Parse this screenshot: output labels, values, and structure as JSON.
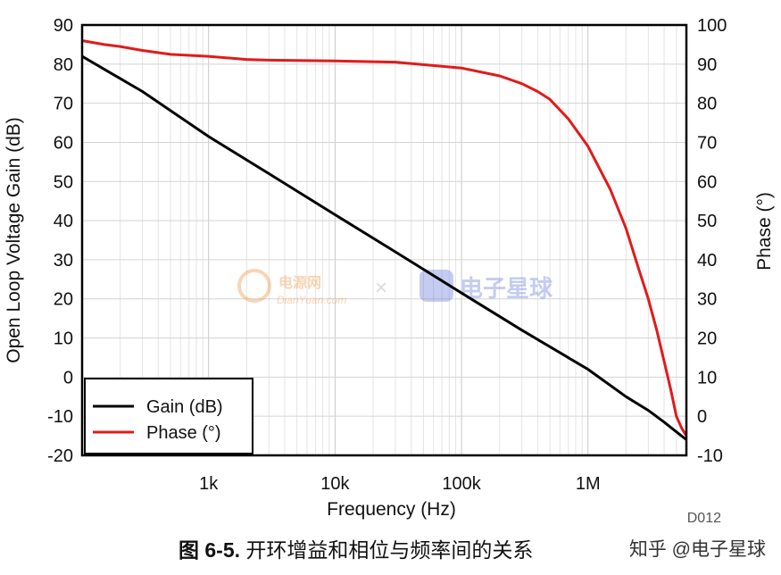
{
  "chart_data": {
    "type": "line",
    "xlabel": "Frequency (Hz)",
    "ylabel_left": "Open Loop Voltage Gain (dB)",
    "ylabel_right": "Phase (°)",
    "x_scale": "log",
    "xlim": [
      100,
      6000000
    ],
    "ylim_left": [
      -20,
      90
    ],
    "ylim_right": [
      -10,
      100
    ],
    "grid": true,
    "legend_position": "bottom-left",
    "x_ticks": [
      {
        "value": 1000,
        "label": "1k"
      },
      {
        "value": 10000,
        "label": "10k"
      },
      {
        "value": 100000,
        "label": "100k"
      },
      {
        "value": 1000000,
        "label": "1M"
      }
    ],
    "y_ticks_left": [
      "90",
      "80",
      "70",
      "60",
      "50",
      "40",
      "30",
      "20",
      "10",
      "0",
      "-10",
      "-20"
    ],
    "y_ticks_right": [
      "100",
      "90",
      "80",
      "70",
      "60",
      "50",
      "40",
      "30",
      "20",
      "10",
      "0",
      "-10"
    ],
    "series": [
      {
        "name": "Gain (dB)",
        "axis": "left",
        "color": "#000000",
        "x": [
          100,
          300,
          1000,
          3000,
          10000,
          30000,
          100000,
          300000,
          1000000,
          2000000,
          3000000,
          4000000,
          5000000,
          6000000
        ],
        "y": [
          82,
          73,
          61.5,
          52,
          41.5,
          32,
          21.5,
          12,
          2,
          -5,
          -8.5,
          -11.5,
          -14,
          -16
        ]
      },
      {
        "name": "Phase (°)",
        "axis": "right",
        "color": "#e01b1b",
        "x": [
          100,
          150,
          200,
          300,
          500,
          1000,
          2000,
          3000,
          10000,
          30000,
          100000,
          200000,
          300000,
          400000,
          500000,
          700000,
          1000000,
          1500000,
          2000000,
          2500000,
          3000000,
          3500000,
          4000000,
          4500000,
          5000000,
          5500000,
          6000000
        ],
        "y": [
          96,
          95,
          94.5,
          93.5,
          92.5,
          92,
          91.2,
          91,
          90.8,
          90.5,
          89,
          87,
          85,
          83,
          81,
          76,
          69,
          58,
          48,
          38,
          30,
          22,
          14,
          7,
          0,
          -3,
          -5
        ]
      }
    ],
    "annotation": "D012"
  },
  "caption": {
    "figure_label": "图 6-5.",
    "text": " 开环增益和相位与频率间的关系"
  },
  "credit": "知乎 @电子星球",
  "watermark": {
    "text1": "电源网",
    "text2": "DianYuan.com",
    "separator": "×",
    "text3": "电子星球"
  }
}
